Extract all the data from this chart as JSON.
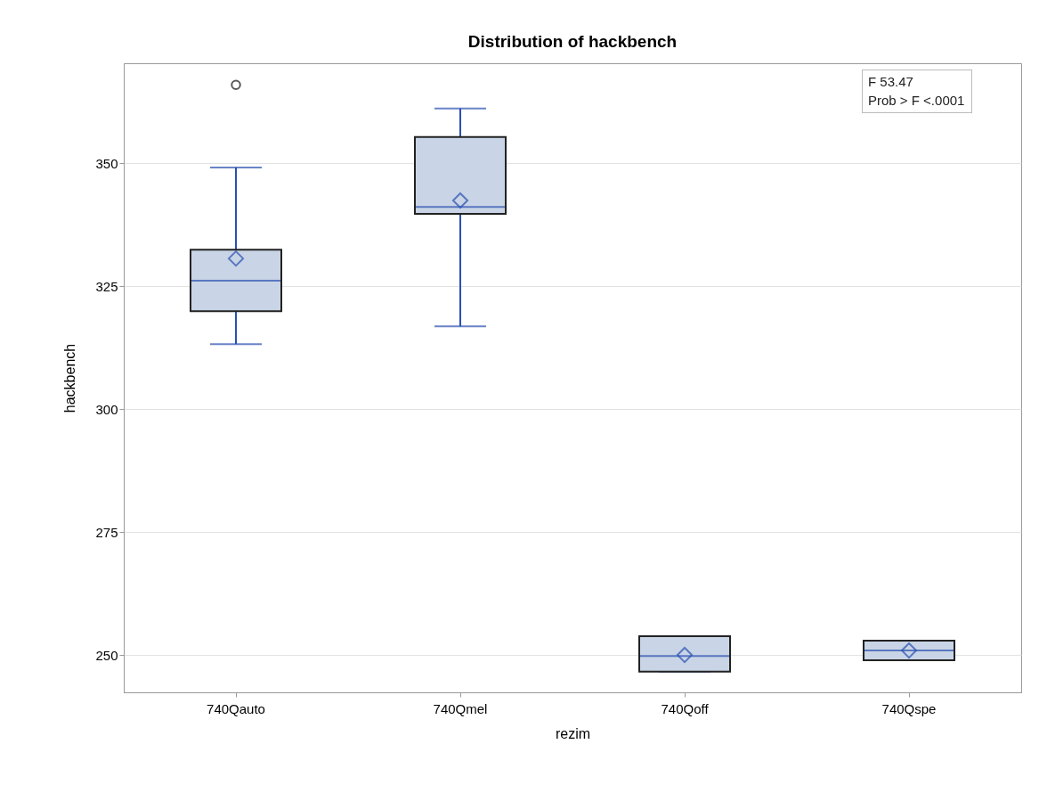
{
  "chart_data": {
    "type": "box",
    "title": "Distribution of hackbench",
    "xlabel": "rezim",
    "ylabel": "hackbench",
    "categories": [
      "740Qauto",
      "740Qmel",
      "740Qoff",
      "740Qspe"
    ],
    "boxes": [
      {
        "low": 313.2,
        "q1": 319.9,
        "median": 326.1,
        "q3": 332.4,
        "high": 349.1,
        "mean": 330.6,
        "outliers": [
          365.9
        ]
      },
      {
        "low": 316.8,
        "q1": 339.7,
        "median": 341.1,
        "q3": 355.3,
        "high": 361.1,
        "mean": 342.4
      },
      {
        "low": 246.6,
        "q1": 246.6,
        "median": 249.8,
        "q3": 253.8,
        "high": 253.8,
        "mean": 250.0
      },
      {
        "low": 248.9,
        "q1": 248.9,
        "median": 250.9,
        "q3": 252.9,
        "high": 252.9,
        "mean": 250.9
      }
    ],
    "color": "#c9d5e6",
    "ylim": [
      242.4,
      370.3
    ],
    "yticks": [
      250,
      275,
      300,
      325,
      350
    ],
    "grid": "y",
    "annotations": [
      "F 53.47",
      "Prob > F <.0001"
    ]
  }
}
